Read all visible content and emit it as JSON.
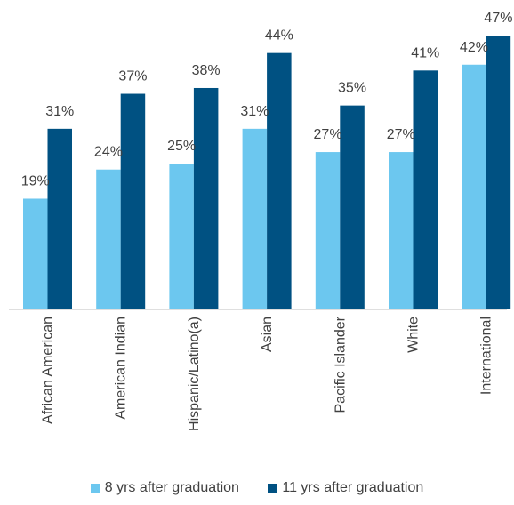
{
  "chart_data": {
    "type": "bar",
    "categories": [
      "African American",
      "American Indian",
      "Hispanic/Latino(a)",
      "Asian",
      "Pacific Islander",
      "White",
      "International"
    ],
    "series": [
      {
        "name": "8 yrs after graduation",
        "values": [
          19,
          24,
          25,
          31,
          27,
          27,
          42
        ],
        "labels": [
          "19%",
          "24%",
          "25%",
          "31%",
          "27%",
          "27%",
          "42%"
        ],
        "color": "#6CC7EF"
      },
      {
        "name": "11 yrs after graduation",
        "values": [
          31,
          37,
          38,
          44,
          35,
          41,
          47
        ],
        "labels": [
          "31%",
          "37%",
          "38%",
          "44%",
          "35%",
          "41%",
          "47%"
        ],
        "color": "#005182"
      }
    ],
    "ylim": [
      0,
      47
    ],
    "grid": false,
    "legend_position": "bottom",
    "title": "",
    "xlabel": "",
    "ylabel": ""
  }
}
